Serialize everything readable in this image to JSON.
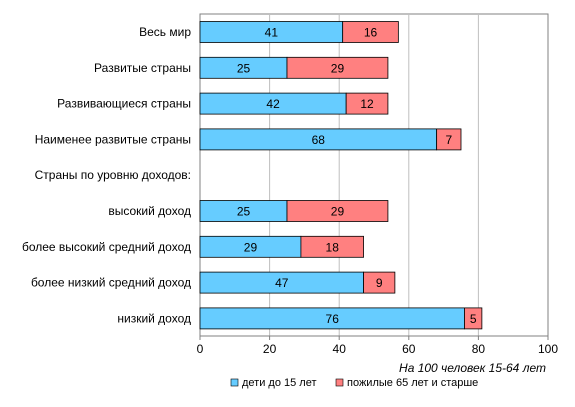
{
  "chart_data": {
    "type": "bar",
    "orientation": "horizontal",
    "stacked": true,
    "categories": [
      "Весь мир",
      "Развитые страны",
      "Развивающиеся страны",
      "Наименее развитые страны",
      "Страны по уровню доходов:",
      "высокий доход",
      "более высокий средний доход",
      "более низкий средний доход",
      "низкий доход"
    ],
    "series": [
      {
        "name": "дети до 15 лет",
        "color": "#66CCFF",
        "values": [
          41,
          25,
          42,
          68,
          null,
          25,
          29,
          47,
          76
        ]
      },
      {
        "name": "пожилые 65 лет и старше",
        "color": "#FF8080",
        "values": [
          16,
          29,
          12,
          7,
          null,
          29,
          18,
          9,
          5
        ]
      }
    ],
    "xlabel": "На 100 человек 15-64 лет",
    "xlim": [
      0,
      100
    ],
    "xticks": [
      0,
      20,
      40,
      60,
      80,
      100
    ],
    "grid": "vertical",
    "legend_position": "bottom"
  }
}
